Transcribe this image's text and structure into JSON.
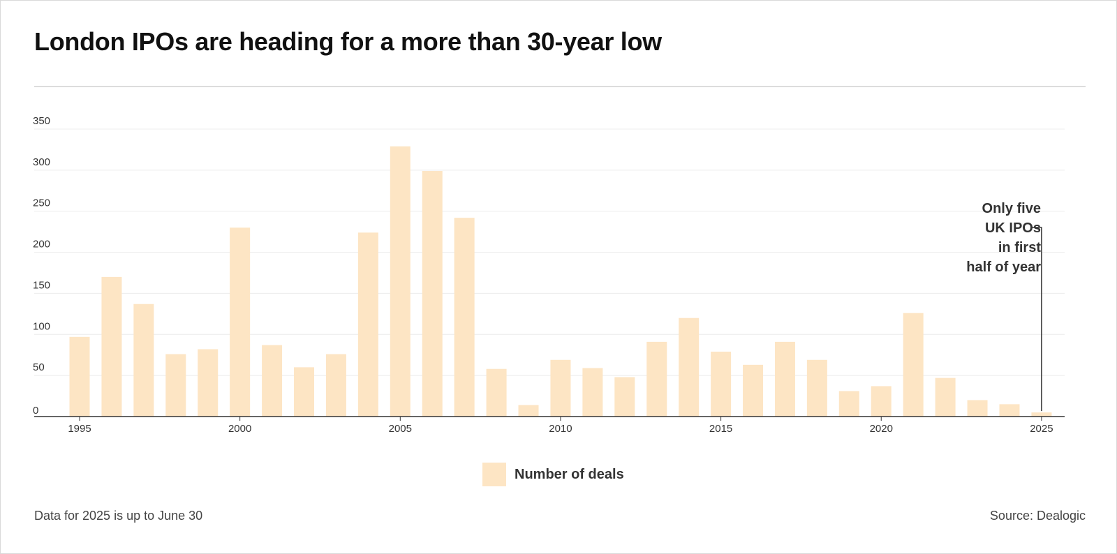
{
  "title": "London IPOs are heading for a more than 30-year low",
  "footnote": "Data for 2025 is up to June 30",
  "source": "Source: Dealogic",
  "annotation": {
    "lines": [
      "Only five",
      "UK IPOs",
      "in first",
      "half of year"
    ]
  },
  "legend": {
    "label": "Number of deals",
    "color": "#fde5c4"
  },
  "colors": {
    "bar": "#fde5c4",
    "grid": "#ececec",
    "axis": "#333333",
    "tick_text": "#333333"
  },
  "chart_data": {
    "type": "bar",
    "title": "London IPOs are heading for a more than 30-year low",
    "xlabel": "",
    "ylabel": "",
    "ylim": [
      0,
      350
    ],
    "y_ticks": [
      0,
      50,
      100,
      150,
      200,
      250,
      300,
      350
    ],
    "x_tick_labels": [
      "1995",
      "2000",
      "2005",
      "2010",
      "2015",
      "2020",
      "2025"
    ],
    "grid": true,
    "legend_position": "bottom-center",
    "categories": [
      "1995",
      "1996",
      "1997",
      "1998",
      "1999",
      "2000",
      "2001",
      "2002",
      "2003",
      "2004",
      "2005",
      "2006",
      "2007",
      "2008",
      "2009",
      "2010",
      "2011",
      "2012",
      "2013",
      "2014",
      "2015",
      "2016",
      "2017",
      "2018",
      "2019",
      "2020",
      "2021",
      "2022",
      "2023",
      "2024",
      "2025"
    ],
    "series": [
      {
        "name": "Number of deals",
        "values": [
          97,
          170,
          137,
          76,
          82,
          230,
          87,
          60,
          76,
          224,
          329,
          299,
          242,
          58,
          14,
          69,
          59,
          48,
          91,
          120,
          79,
          63,
          91,
          69,
          31,
          37,
          126,
          47,
          20,
          15,
          5
        ]
      }
    ],
    "annotations": [
      {
        "text": "Only five UK IPOs in first half of year",
        "target": "2025"
      }
    ]
  }
}
